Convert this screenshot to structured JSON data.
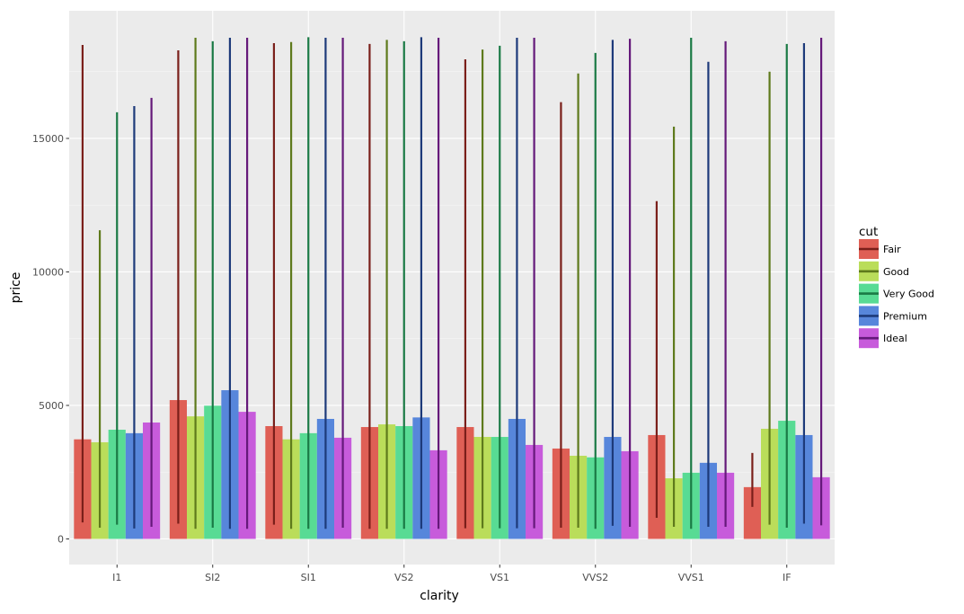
{
  "chart_data": {
    "type": "bar",
    "subtype": "grouped bar with error bars (min-max range)",
    "title": "",
    "xlabel": "clarity",
    "ylabel": "price",
    "categories": [
      "I1",
      "SI2",
      "SI1",
      "VS2",
      "VS1",
      "VVS2",
      "VVS1",
      "IF"
    ],
    "yticks": [
      0,
      5000,
      10000,
      15000
    ],
    "ytick_labels": [
      "0",
      "5000",
      "10000",
      "15000"
    ],
    "ylim": [
      -960,
      19780
    ],
    "grid": true,
    "legend": {
      "title": "cut",
      "position": "right"
    },
    "series": [
      {
        "name": "Fair",
        "color": "#df5f55",
        "errcolor": "#7a1f1a",
        "values": [
          3730,
          5200,
          4225,
          4190,
          4190,
          3385,
          3890,
          1940
        ],
        "err_low": [
          620,
          570,
          535,
          380,
          400,
          420,
          790,
          1200
        ],
        "err_high": [
          18500,
          18300,
          18570,
          18540,
          17960,
          16360,
          12650,
          3220
        ]
      },
      {
        "name": "Good",
        "color": "#badd5a",
        "errcolor": "#5e7a1c",
        "values": [
          3620,
          4590,
          3730,
          4290,
          3820,
          3115,
          2270,
          4125
        ],
        "err_low": [
          420,
          380,
          380,
          380,
          400,
          420,
          455,
          535
        ],
        "err_high": [
          11560,
          18770,
          18610,
          18690,
          18330,
          17430,
          15440,
          17500
        ]
      },
      {
        "name": "Very Good",
        "color": "#58db94",
        "errcolor": "#1a7a45",
        "values": [
          4090,
          4990,
          3960,
          4225,
          3820,
          3055,
          2480,
          4425
        ],
        "err_low": [
          535,
          420,
          380,
          380,
          400,
          380,
          380,
          420
        ],
        "err_high": [
          15980,
          18640,
          18790,
          18640,
          18470,
          18200,
          18770,
          18540
        ]
      },
      {
        "name": "Premium",
        "color": "#5786db",
        "errcolor": "#1d3a7a",
        "values": [
          3960,
          5570,
          4495,
          4550,
          4495,
          3820,
          2850,
          3890
        ],
        "err_low": [
          390,
          380,
          380,
          380,
          400,
          490,
          455,
          570
        ],
        "err_high": [
          16210,
          18770,
          18770,
          18790,
          18770,
          18690,
          17870,
          18570
        ]
      },
      {
        "name": "Ideal",
        "color": "#c75bdb",
        "errcolor": "#65197a",
        "values": [
          4360,
          4760,
          3790,
          3320,
          3520,
          3285,
          2480,
          2310
        ],
        "err_low": [
          455,
          380,
          420,
          380,
          400,
          455,
          455,
          510
        ],
        "err_high": [
          16520,
          18770,
          18770,
          18770,
          18770,
          18730,
          18640,
          18770
        ]
      }
    ]
  },
  "theme": {
    "panel_bg": "#ebebeb",
    "grid_major": "#ffffff",
    "grid_minor": "#f7f7f7",
    "page_bg": "#ffffff"
  }
}
